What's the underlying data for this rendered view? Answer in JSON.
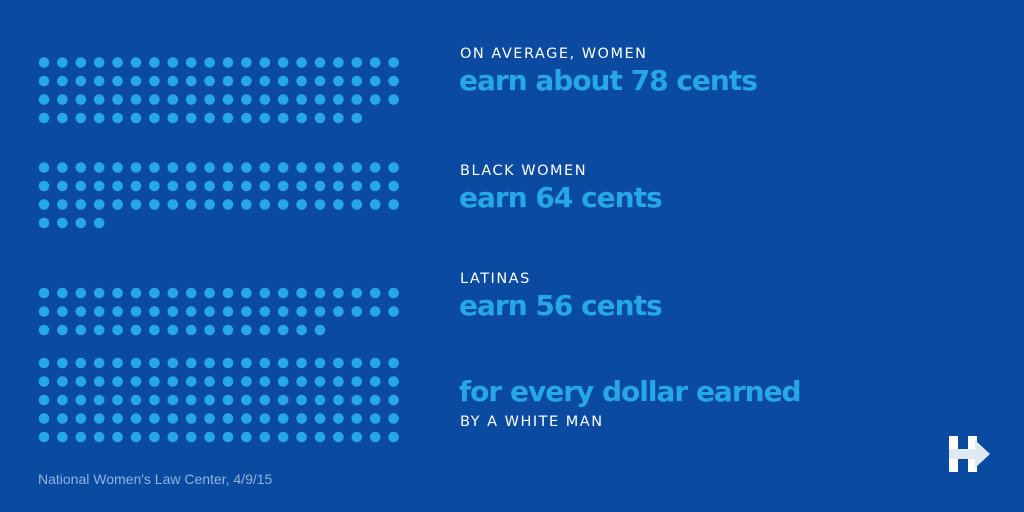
{
  "chart_data": {
    "type": "bar",
    "unit": "cents",
    "categories": [
      "women",
      "black_women",
      "latinas",
      "white_man"
    ],
    "values": [
      78,
      64,
      56,
      100
    ],
    "colors": {
      "dot": "#25a7e8",
      "background": "#0a4aa0"
    }
  },
  "texts": {
    "women_label": "ON AVERAGE, WOMEN",
    "women_value": "earn about 78 cents",
    "black_label": "BLACK WOMEN",
    "black_value": "earn 64 cents",
    "latinas_label": "LATINAS",
    "latinas_value": "earn 56 cents",
    "dollar_value": "for every dollar earned",
    "dollar_label": "BY A WHITE MAN",
    "source": "National Women's Law Center, 4/9/15"
  },
  "logo": {
    "icon": "h-arrow-logo-icon",
    "bar_color": "#ffffff",
    "arrow_color": "#e0e8f2"
  }
}
